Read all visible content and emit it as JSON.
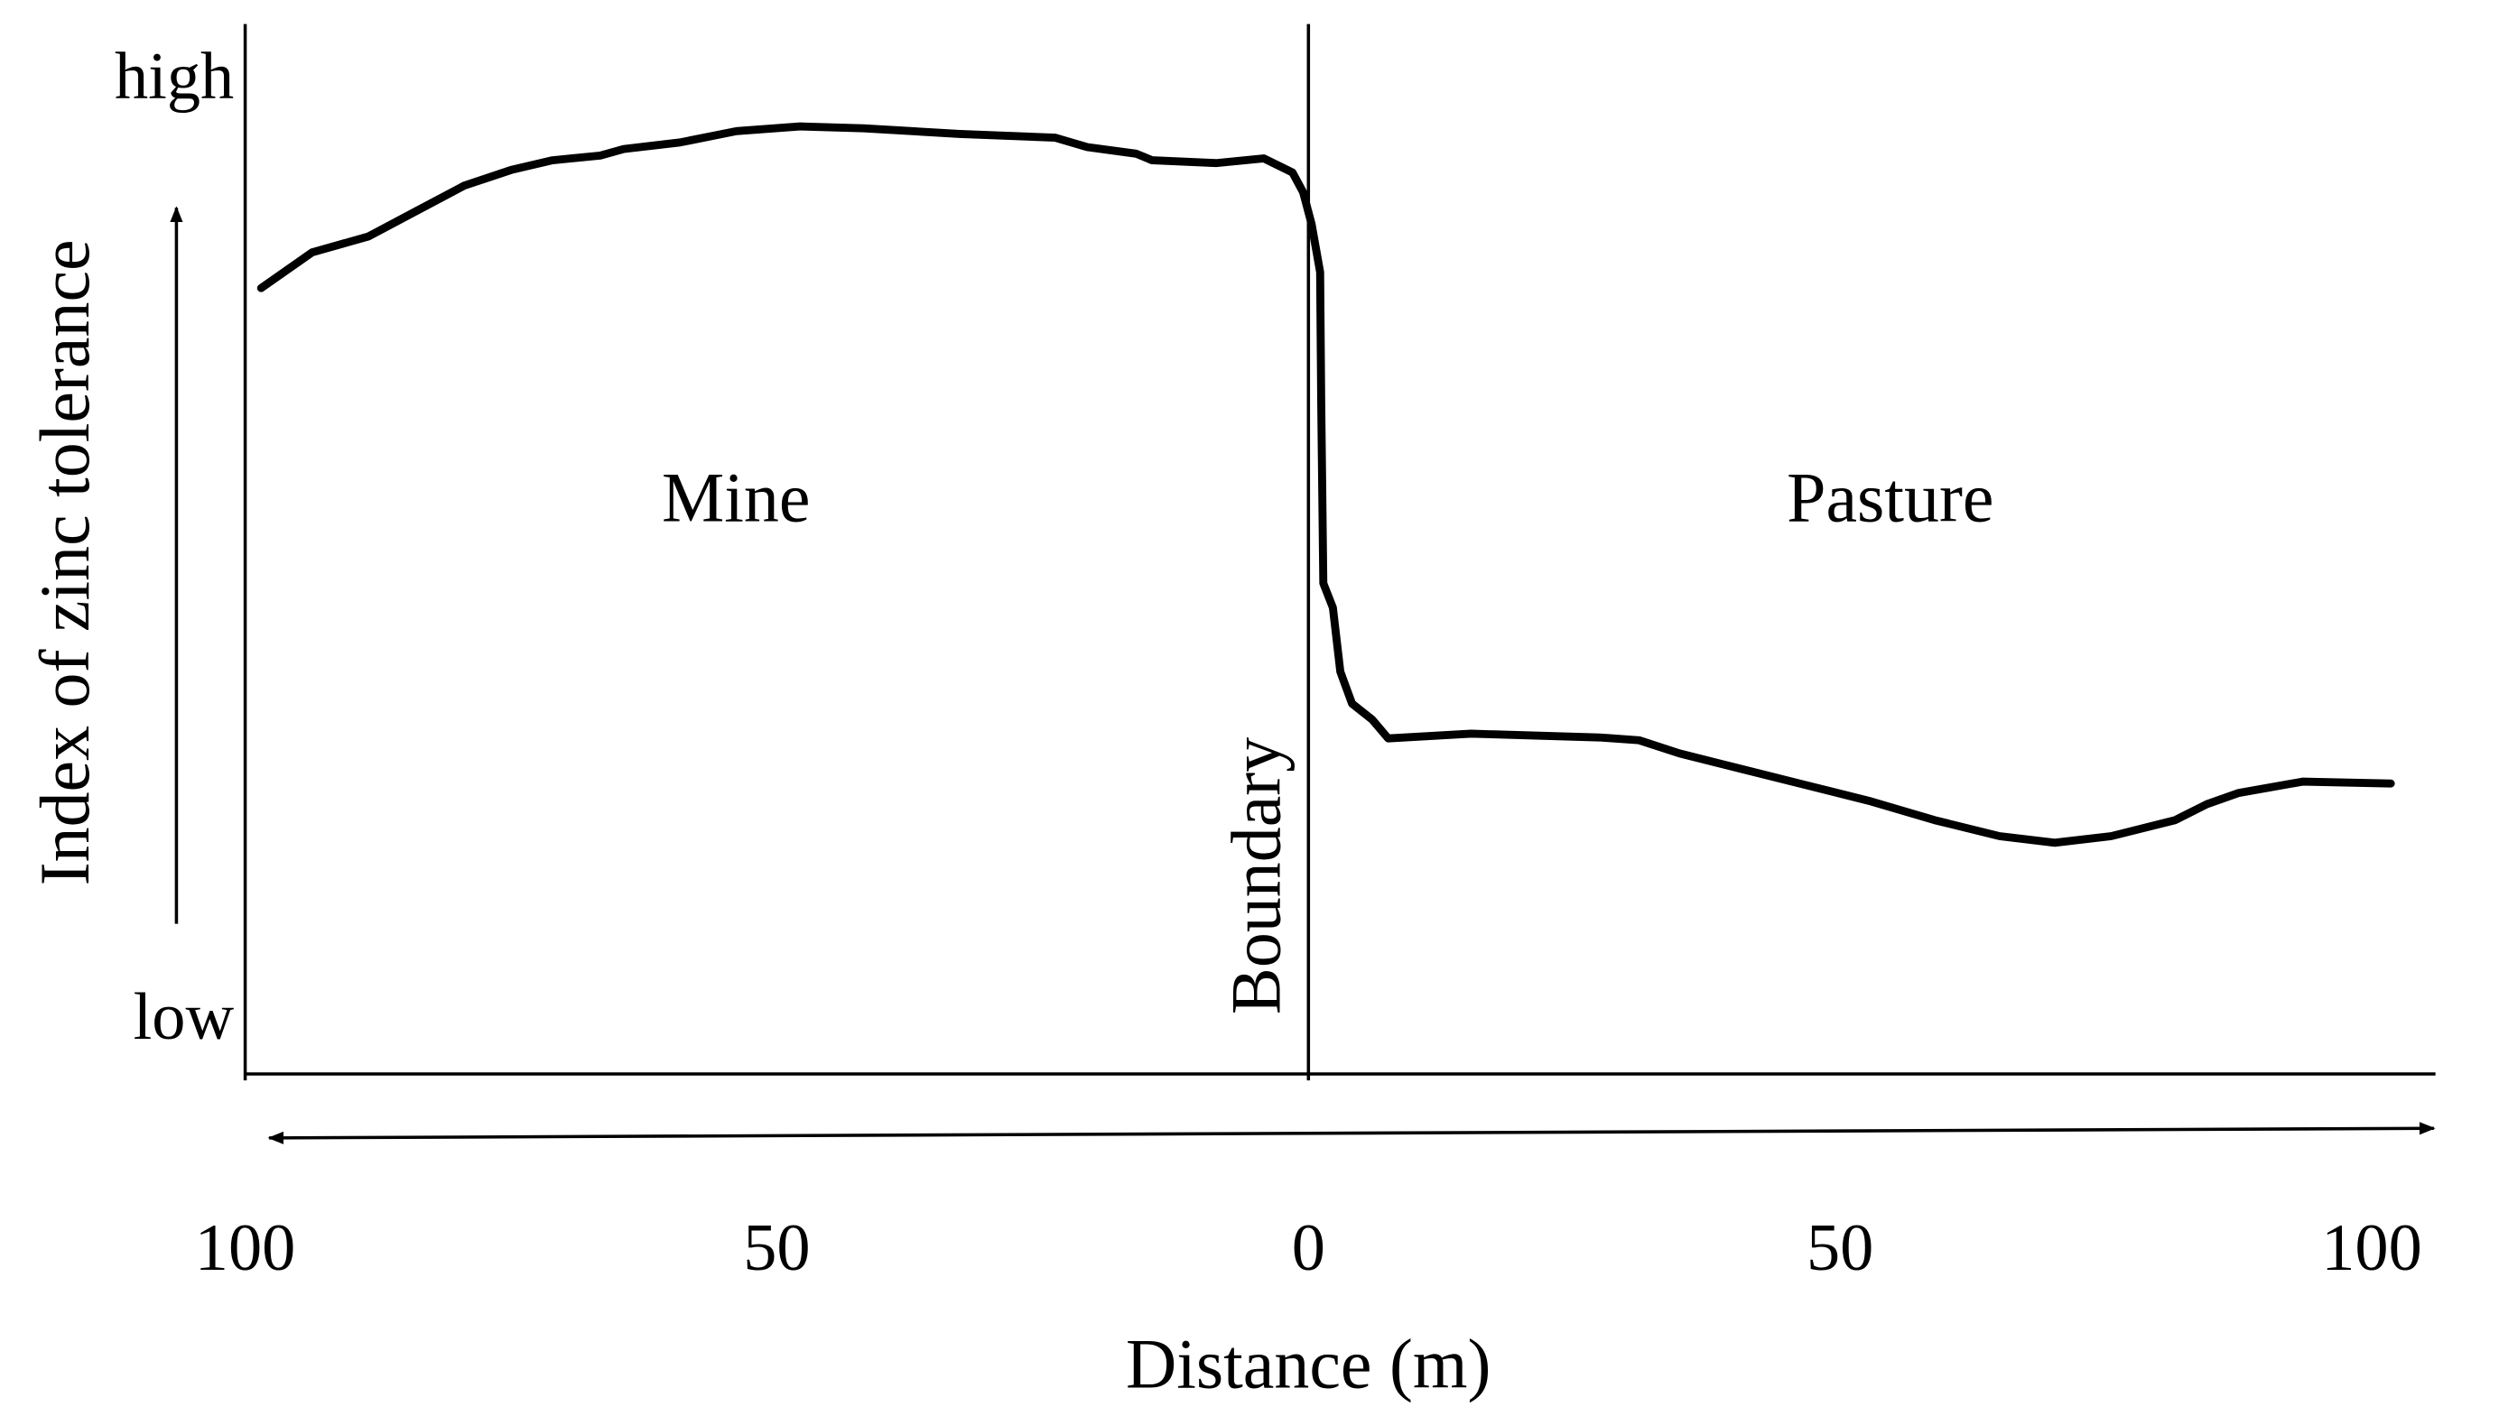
{
  "chart_data": {
    "type": "line",
    "y_label": "Index of zinc tolerance",
    "x_label": "Distance (m)",
    "annotations": [
      "Mine",
      "Pasture",
      "Boundary"
    ],
    "color": "#000000",
    "xlim": [
      -100,
      106
    ],
    "ylim": [
      -5.4,
      106.3
    ],
    "xticks": [
      {
        "value": -100,
        "label": "100"
      },
      {
        "value": -50,
        "label": "50"
      },
      0,
      50,
      100
    ],
    "yticks": [
      {
        "value": 0,
        "label": "low"
      },
      {
        "value": 100,
        "label": "high"
      }
    ],
    "x": [
      -98.5,
      -93.7,
      -88.4,
      -83.9,
      -79.4,
      -74.9,
      -71.1,
      -66.6,
      -64.4,
      -59.1,
      -53.8,
      -47.8,
      -41.8,
      -32.8,
      -23.8,
      -20.8,
      -16.2,
      -14.7,
      -8.7,
      -4.2,
      -1.5,
      -0.5,
      0.3,
      1.1,
      1.2,
      1.4,
      2.3,
      3.0,
      4.1,
      6.0,
      7.5,
      15.3,
      27.4,
      31.1,
      34.9,
      40.9,
      46.9,
      52.9,
      58.9,
      65.0,
      70.2,
      75.5,
      81.5,
      84.5,
      87.5,
      93.5,
      101.8
    ],
    "values": [
      78.2,
      82.0,
      83.7,
      86.4,
      89.1,
      90.8,
      91.8,
      92.3,
      93.0,
      93.7,
      94.9,
      95.4,
      95.2,
      94.6,
      94.2,
      93.2,
      92.5,
      91.8,
      91.5,
      92.0,
      90.5,
      88.4,
      85.0,
      79.9,
      66.3,
      46.8,
      44.2,
      37.4,
      34.0,
      32.3,
      30.3,
      30.8,
      30.4,
      30.1,
      28.7,
      27.0,
      25.3,
      23.6,
      21.6,
      19.9,
      19.2,
      19.9,
      21.6,
      23.3,
      24.5,
      25.7,
      25.5
    ]
  }
}
